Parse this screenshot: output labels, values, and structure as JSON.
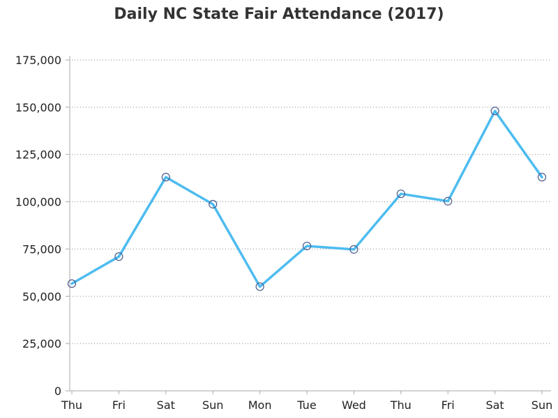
{
  "chart_data": {
    "type": "line",
    "title": "Daily NC State Fair Attendance (2017)",
    "xlabel": "",
    "ylabel": "",
    "categories": [
      "Thu",
      "Fri",
      "Sat",
      "Sun",
      "Mon",
      "Tue",
      "Wed",
      "Thu",
      "Fri",
      "Sat",
      "Sun"
    ],
    "series": [
      {
        "values": [
          56700,
          71000,
          113000,
          98700,
          55100,
          76600,
          74800,
          104200,
          100300,
          148000,
          113000
        ]
      }
    ],
    "ylim": [
      0,
      175000
    ],
    "yticks": [
      0,
      25000,
      50000,
      75000,
      100000,
      125000,
      150000,
      175000
    ],
    "ytick_labels": [
      "0",
      "25,000",
      "50,000",
      "75,000",
      "100,000",
      "125,000",
      "150,000",
      "175,000"
    ],
    "grid": "horizontal dotted",
    "legend": "none",
    "colors": {
      "line": "#4dbcf0",
      "marker": "#4a5a8a",
      "grid": "#888888",
      "axis": "#aaaaaa"
    }
  }
}
